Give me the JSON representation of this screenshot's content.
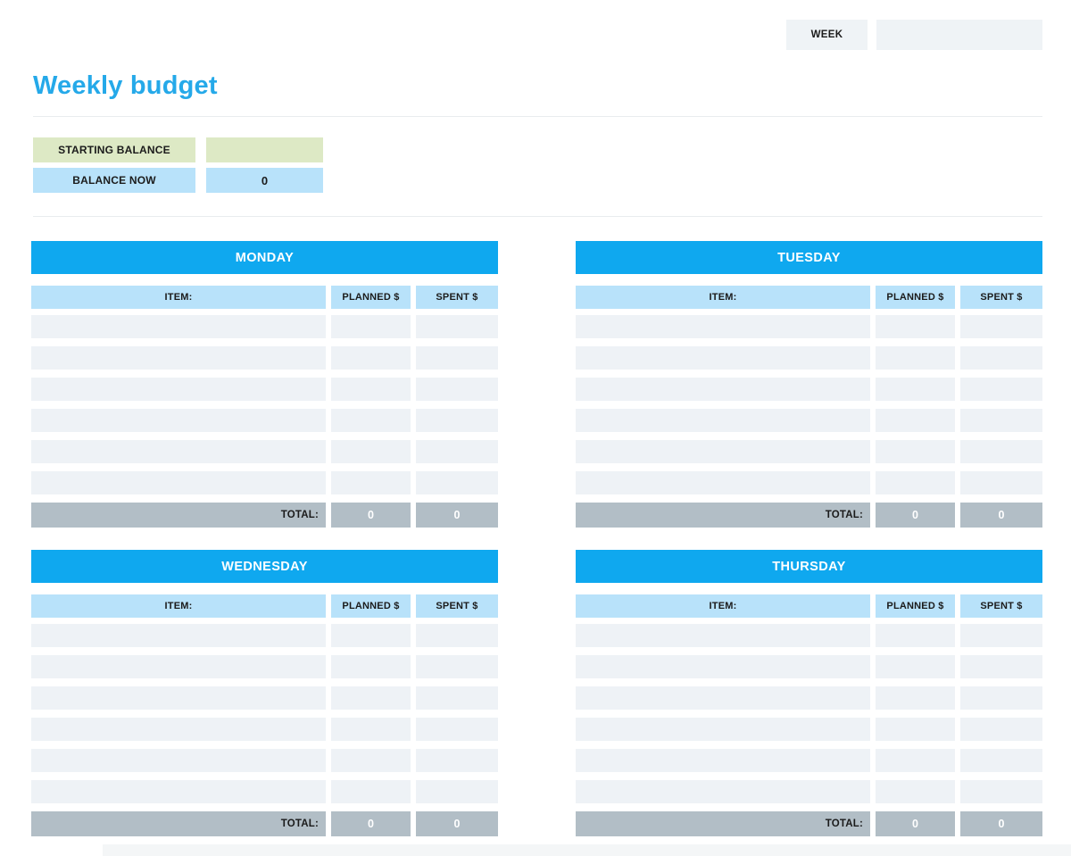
{
  "page": {
    "week_label": "WEEK",
    "week_value": "",
    "title": "Weekly budget"
  },
  "balance": {
    "starting_label": "STARTING BALANCE",
    "starting_value": "",
    "now_label": "BALANCE NOW",
    "now_value": "0"
  },
  "table_headers": {
    "item": "ITEM:",
    "planned": "PLANNED $",
    "spent": "SPENT $",
    "total": "TOTAL:"
  },
  "days": [
    {
      "name": "MONDAY",
      "rows": [
        [
          "",
          "",
          ""
        ],
        [
          "",
          "",
          ""
        ],
        [
          "",
          "",
          ""
        ],
        [
          "",
          "",
          ""
        ],
        [
          "",
          "",
          ""
        ],
        [
          "",
          "",
          ""
        ]
      ],
      "total_planned": "0",
      "total_spent": "0"
    },
    {
      "name": "TUESDAY",
      "rows": [
        [
          "",
          "",
          ""
        ],
        [
          "",
          "",
          ""
        ],
        [
          "",
          "",
          ""
        ],
        [
          "",
          "",
          ""
        ],
        [
          "",
          "",
          ""
        ],
        [
          "",
          "",
          ""
        ]
      ],
      "total_planned": "0",
      "total_spent": "0"
    },
    {
      "name": "WEDNESDAY",
      "rows": [
        [
          "",
          "",
          ""
        ],
        [
          "",
          "",
          ""
        ],
        [
          "",
          "",
          ""
        ],
        [
          "",
          "",
          ""
        ],
        [
          "",
          "",
          ""
        ],
        [
          "",
          "",
          ""
        ]
      ],
      "total_planned": "0",
      "total_spent": "0"
    },
    {
      "name": "THURSDAY",
      "rows": [
        [
          "",
          "",
          ""
        ],
        [
          "",
          "",
          ""
        ],
        [
          "",
          "",
          ""
        ],
        [
          "",
          "",
          ""
        ],
        [
          "",
          "",
          ""
        ],
        [
          "",
          "",
          ""
        ]
      ],
      "total_planned": "0",
      "total_spent": "0"
    }
  ],
  "colors": {
    "accent_blue": "#0fa8ef",
    "title_blue": "#25a9e9",
    "light_blue": "#b8e2fa",
    "row_gray": "#eef2f6",
    "total_gray": "#b2bec6",
    "green": "#dde9c5"
  }
}
